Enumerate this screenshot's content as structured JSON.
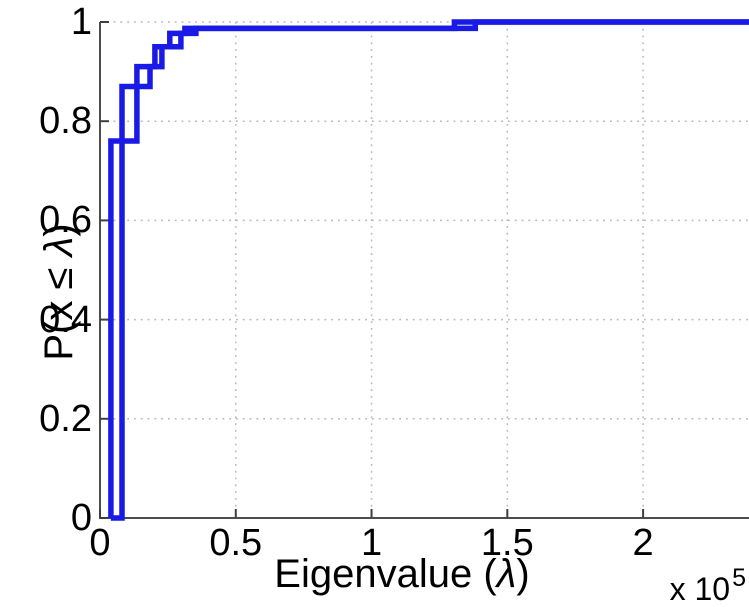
{
  "chart_data": {
    "type": "step",
    "description": "Empirical CDF of eigenvalues, two overlapping step curves",
    "xlabel_prefix": "Eigenvalue (",
    "xlabel_lambda": "λ",
    "xlabel_suffix": ")",
    "ylabel_prefix": "P(x ≤ ",
    "ylabel_lambda": "λ",
    "ylabel_suffix": ")",
    "x_multiplier_base": "x 10",
    "x_multiplier_exp": "5",
    "x_units": "1e5",
    "x_ticks": [
      {
        "v": 0,
        "label": "0"
      },
      {
        "v": 0.5,
        "label": "0.5"
      },
      {
        "v": 1,
        "label": "1"
      },
      {
        "v": 1.5,
        "label": "1.5"
      },
      {
        "v": 2,
        "label": "2"
      }
    ],
    "y_ticks": [
      {
        "v": 0,
        "label": "0"
      },
      {
        "v": 0.2,
        "label": "0.2"
      },
      {
        "v": 0.4,
        "label": "0.4"
      },
      {
        "v": 0.6,
        "label": "0.6"
      },
      {
        "v": 0.8,
        "label": "0.8"
      },
      {
        "v": 1,
        "label": "1"
      }
    ],
    "xlim": [
      0,
      2.39
    ],
    "ylim": [
      0,
      1
    ],
    "grid": true,
    "legend": "none",
    "colors": {
      "line": "#1a1ae6",
      "grid": "#b8b8b8",
      "axis": "#4d4d4d",
      "tick": "#3f3f3f",
      "text": "#000000"
    },
    "series": [
      {
        "name": "series_1",
        "start_x": 0.04,
        "steps": [
          [
            0.04,
            0.76
          ],
          [
            0.136,
            0.91
          ],
          [
            0.202,
            0.95
          ],
          [
            0.257,
            0.977
          ],
          [
            0.3125,
            0.987
          ],
          [
            1.305,
            1.0
          ]
        ]
      },
      {
        "name": "series_2",
        "start_x": 0.04,
        "steps": [
          [
            0.081,
            0.87
          ],
          [
            0.184,
            0.91
          ],
          [
            0.228,
            0.95
          ],
          [
            0.298,
            0.977
          ],
          [
            0.353,
            0.987
          ],
          [
            1.382,
            1.0
          ]
        ]
      }
    ]
  }
}
